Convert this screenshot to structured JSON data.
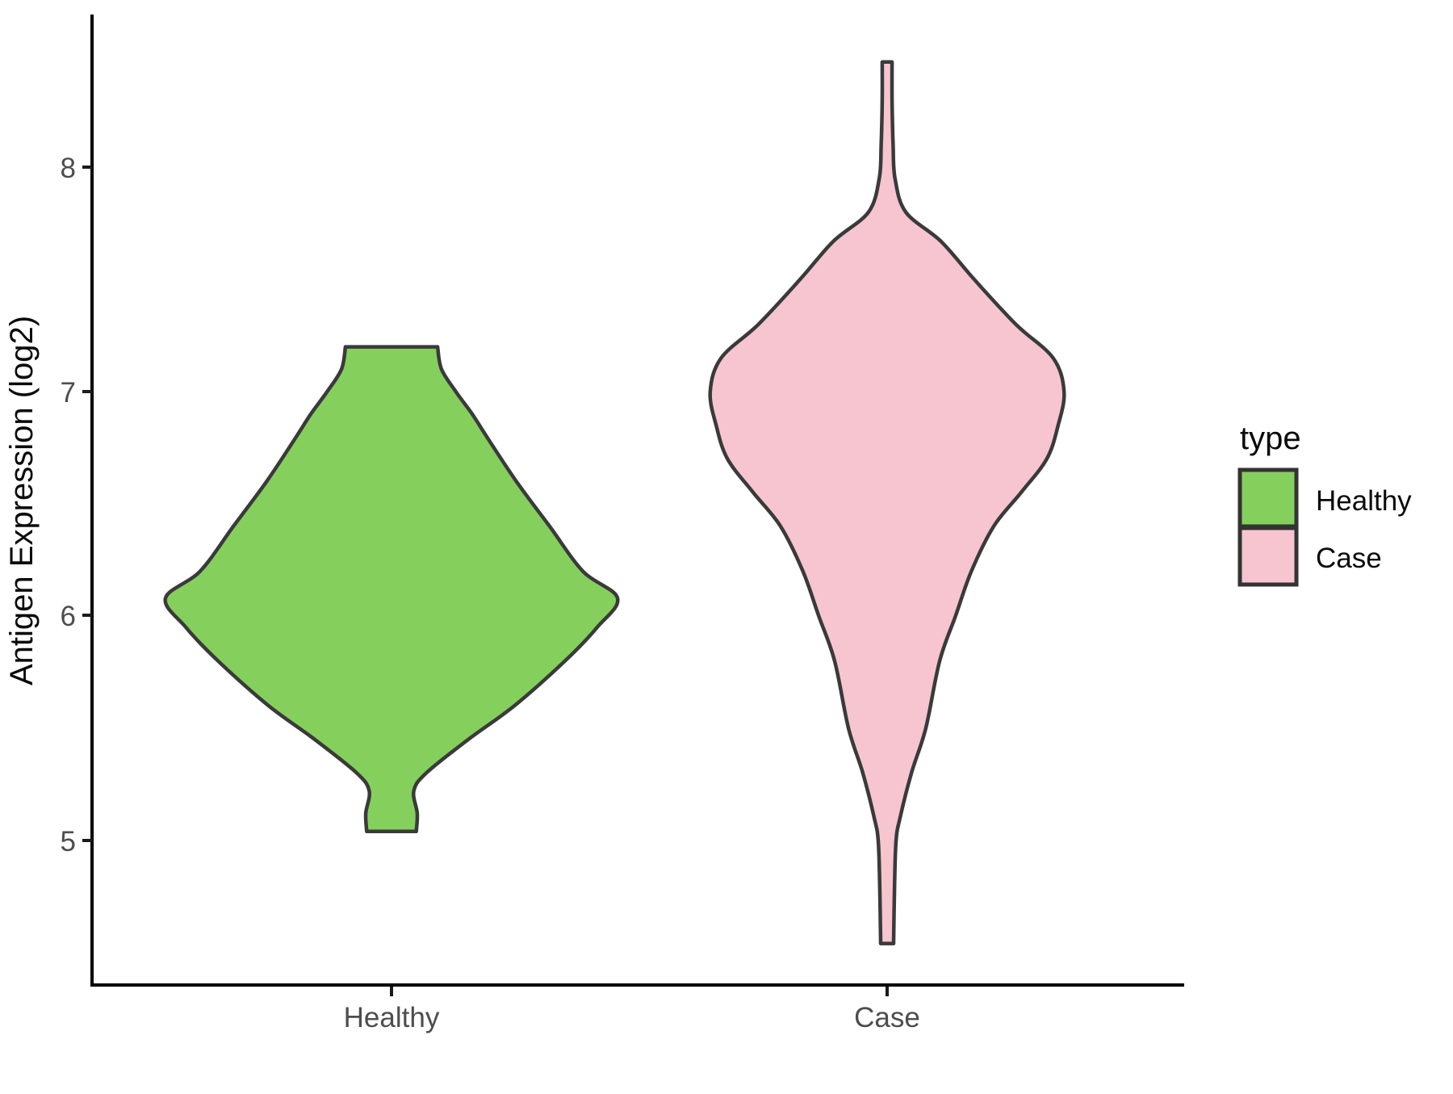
{
  "canvas": {
    "background": "#FFFFFF"
  },
  "chart_data": {
    "type": "violin",
    "title": "",
    "xlabel": "",
    "ylabel": "Antigen Expression (log2)",
    "categories": [
      "Healthy",
      "Case"
    ],
    "y_ticks": [
      {
        "label": "8",
        "value": 8
      },
      {
        "label": "7",
        "value": 7
      },
      {
        "label": "6",
        "value": 6
      },
      {
        "label": "5",
        "value": 5
      }
    ],
    "ylim": [
      4.3,
      8.6
    ],
    "grid": "off",
    "outline_color": "#3A3A3A",
    "axis_color": "#000000",
    "tick_label_color": "#4D4D4D",
    "legend": {
      "title": "type",
      "position": "right",
      "entries": [
        {
          "label": "Healthy",
          "color": "#85D05C"
        },
        {
          "label": "Case",
          "color": "#F6C5D0"
        }
      ]
    },
    "series": [
      {
        "name": "Healthy",
        "fill": "#85D05C",
        "category_index": 0,
        "min": 5.04,
        "max": 7.2,
        "flat_top": true,
        "profile": [
          [
            7.2,
            0.093
          ],
          [
            7.1,
            0.101
          ],
          [
            7.0,
            0.13
          ],
          [
            6.9,
            0.163
          ],
          [
            6.8,
            0.192
          ],
          [
            6.6,
            0.252
          ],
          [
            6.4,
            0.319
          ],
          [
            6.2,
            0.386
          ],
          [
            6.08,
            0.456
          ],
          [
            5.95,
            0.415
          ],
          [
            5.8,
            0.35
          ],
          [
            5.6,
            0.248
          ],
          [
            5.45,
            0.155
          ],
          [
            5.3,
            0.07
          ],
          [
            5.22,
            0.045
          ],
          [
            5.12,
            0.052
          ],
          [
            5.04,
            0.05
          ]
        ]
      },
      {
        "name": "Case",
        "fill": "#F6C5D0",
        "category_index": 1,
        "min": 4.54,
        "max": 8.47,
        "flat_top": false,
        "profile": [
          [
            8.47,
            0.01
          ],
          [
            8.3,
            0.01
          ],
          [
            8.1,
            0.012
          ],
          [
            7.95,
            0.016
          ],
          [
            7.8,
            0.038
          ],
          [
            7.67,
            0.109
          ],
          [
            7.5,
            0.176
          ],
          [
            7.3,
            0.26
          ],
          [
            7.15,
            0.335
          ],
          [
            7.0,
            0.357
          ],
          [
            6.85,
            0.345
          ],
          [
            6.7,
            0.322
          ],
          [
            6.55,
            0.27
          ],
          [
            6.4,
            0.215
          ],
          [
            6.2,
            0.17
          ],
          [
            6.0,
            0.138
          ],
          [
            5.8,
            0.106
          ],
          [
            5.5,
            0.078
          ],
          [
            5.3,
            0.049
          ],
          [
            5.1,
            0.026
          ],
          [
            5.0,
            0.018
          ],
          [
            4.8,
            0.015
          ],
          [
            4.54,
            0.013
          ]
        ]
      }
    ]
  }
}
